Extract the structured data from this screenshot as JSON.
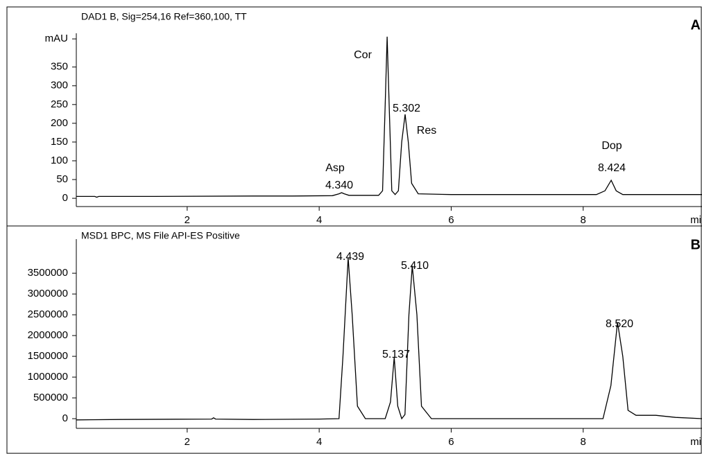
{
  "chart_data": [
    {
      "type": "line",
      "title": "DAD1 B, Sig=254,16 Ref=360,100, TT",
      "panel_label": "A",
      "x_label": "mi",
      "xlim": [
        0.32,
        9.8
      ],
      "xticks": [
        2,
        4,
        6,
        8
      ],
      "ylim": [
        -22,
        440
      ],
      "yticks": [
        0,
        50,
        100,
        150,
        200,
        250,
        300,
        350,
        {
          "value": 425,
          "label": "mAU"
        }
      ],
      "series": [
        {
          "color": "#000000",
          "x": [
            0.32,
            0.6,
            0.63,
            0.66,
            1.5,
            3.0,
            3.6,
            4.2,
            4.3,
            4.34,
            4.38,
            4.45,
            4.9,
            4.96,
            5.0,
            5.03,
            5.06,
            5.1,
            5.15,
            5.2,
            5.25,
            5.302,
            5.35,
            5.4,
            5.5,
            6.0,
            7.0,
            8.2,
            8.33,
            8.424,
            8.5,
            8.6,
            9.0,
            9.8
          ],
          "values": [
            5,
            5,
            3,
            5,
            5,
            6,
            6,
            7,
            12,
            15,
            12,
            8,
            8,
            20,
            250,
            431,
            250,
            20,
            10,
            20,
            150,
            224,
            150,
            40,
            12,
            10,
            10,
            10,
            20,
            48,
            20,
            10,
            10,
            10
          ]
        }
      ],
      "annotations": [
        "Cor",
        "5.302",
        "Res",
        "Asp",
        "4.340",
        "Dop",
        "8.424"
      ]
    },
    {
      "type": "line",
      "title": "MSD1 BPC, MS File API-ES Positive",
      "panel_label": "B",
      "x_label": "mi",
      "xlim": [
        0.32,
        9.8
      ],
      "xticks": [
        2,
        4,
        6,
        8
      ],
      "ylim": [
        -233000,
        4320000
      ],
      "yticks": [
        0,
        500000,
        1000000,
        1500000,
        2000000,
        2500000,
        3000000,
        3500000
      ],
      "series": [
        {
          "color": "#000000",
          "x": [
            0.32,
            1,
            2.37,
            2.4,
            2.43,
            3,
            4.0,
            4.3,
            4.36,
            4.439,
            4.5,
            4.58,
            4.7,
            5.0,
            5.08,
            5.137,
            5.19,
            5.25,
            5.3,
            5.36,
            5.41,
            5.48,
            5.55,
            5.7,
            8.3,
            8.42,
            8.52,
            8.6,
            8.68,
            8.8,
            9.1,
            9.4,
            9.8
          ],
          "values": [
            -30000,
            -20000,
            -10000,
            20000,
            -10000,
            -20000,
            -10000,
            0,
            1500000,
            3870000,
            2500000,
            300000,
            0,
            0,
            400000,
            1480000,
            300000,
            0,
            100000,
            2500000,
            3680000,
            2500000,
            300000,
            0,
            0,
            800000,
            2320000,
            1500000,
            200000,
            80000,
            80000,
            30000,
            0
          ]
        }
      ],
      "annotations": [
        "4.439",
        "5.137",
        "5.410",
        "8.520"
      ]
    }
  ]
}
